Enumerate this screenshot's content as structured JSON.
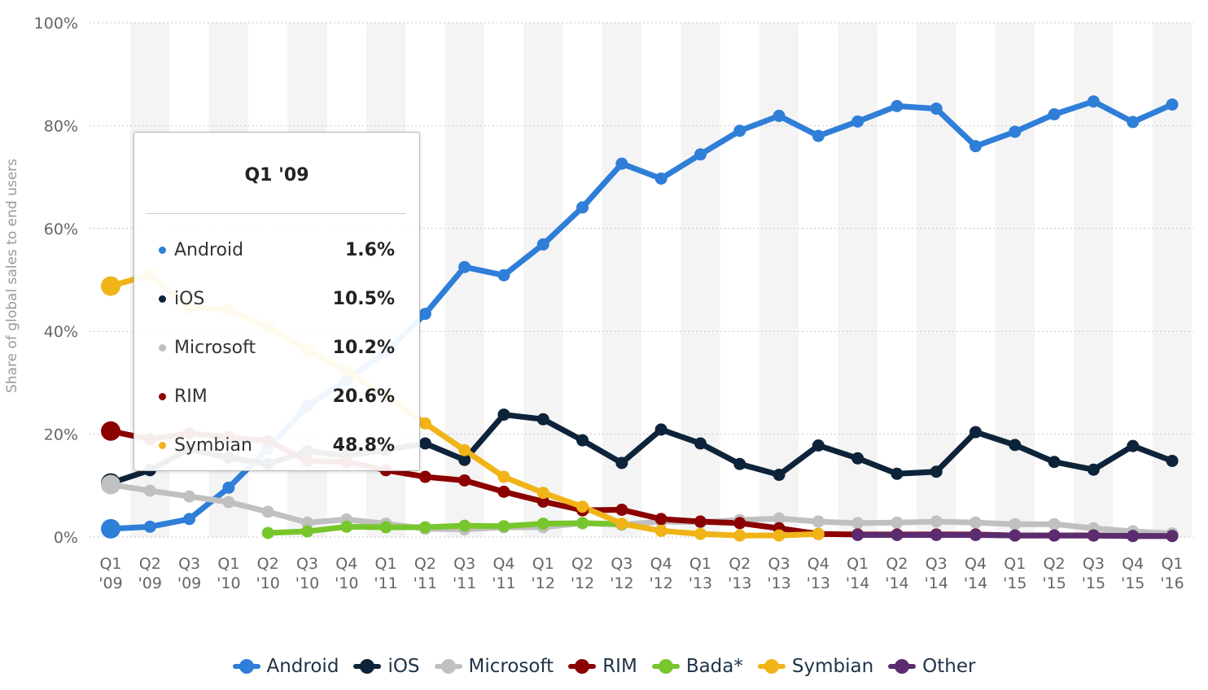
{
  "chart_data": {
    "type": "line",
    "title": "",
    "xlabel": "",
    "ylabel": "Share of global sales to end users",
    "ylim": [
      0,
      100
    ],
    "yticks": [
      "0%",
      "20%",
      "40%",
      "60%",
      "80%",
      "100%"
    ],
    "grid": true,
    "legend_position": "bottom",
    "categories": [
      [
        "Q1",
        "'09"
      ],
      [
        "Q2",
        "'09"
      ],
      [
        "Q3",
        "'09"
      ],
      [
        "Q1",
        "'10"
      ],
      [
        "Q2",
        "'10"
      ],
      [
        "Q3",
        "'10"
      ],
      [
        "Q4",
        "'10"
      ],
      [
        "Q1",
        "'11"
      ],
      [
        "Q2",
        "'11"
      ],
      [
        "Q3",
        "'11"
      ],
      [
        "Q4",
        "'11"
      ],
      [
        "Q1",
        "'12"
      ],
      [
        "Q2",
        "'12"
      ],
      [
        "Q3",
        "'12"
      ],
      [
        "Q4",
        "'12"
      ],
      [
        "Q1",
        "'13"
      ],
      [
        "Q2",
        "'13"
      ],
      [
        "Q3",
        "'13"
      ],
      [
        "Q4",
        "'13"
      ],
      [
        "Q1",
        "'14"
      ],
      [
        "Q2",
        "'14"
      ],
      [
        "Q3",
        "'14"
      ],
      [
        "Q4",
        "'14"
      ],
      [
        "Q1",
        "'15"
      ],
      [
        "Q2",
        "'15"
      ],
      [
        "Q3",
        "'15"
      ],
      [
        "Q4",
        "'15"
      ],
      [
        "Q1",
        "'16"
      ]
    ],
    "series": [
      {
        "name": "Android",
        "color": "#2f7ed8",
        "values": [
          1.6,
          2.0,
          3.5,
          9.6,
          17.2,
          25.5,
          30.5,
          36.0,
          43.4,
          52.5,
          50.9,
          56.9,
          64.1,
          72.6,
          69.7,
          74.4,
          79.0,
          81.9,
          78.0,
          80.8,
          83.8,
          83.3,
          76.0,
          78.8,
          82.2,
          84.7,
          80.7,
          84.1
        ]
      },
      {
        "name": "iOS",
        "color": "#0d233a",
        "values": [
          10.5,
          13.0,
          17.1,
          15.4,
          14.2,
          16.7,
          15.8,
          16.9,
          18.2,
          15.0,
          23.8,
          22.9,
          18.8,
          14.4,
          20.9,
          18.2,
          14.2,
          12.1,
          17.8,
          15.3,
          12.3,
          12.7,
          20.4,
          17.9,
          14.6,
          13.1,
          17.7,
          14.8
        ]
      },
      {
        "name": "Microsoft",
        "color": "#c0c0c0",
        "values": [
          10.2,
          9.0,
          7.9,
          6.8,
          4.9,
          2.8,
          3.4,
          2.6,
          1.6,
          1.5,
          1.9,
          1.9,
          2.7,
          2.4,
          3.0,
          2.9,
          3.3,
          3.6,
          3.0,
          2.7,
          2.8,
          3.0,
          2.8,
          2.5,
          2.5,
          1.7,
          1.1,
          0.7
        ]
      },
      {
        "name": "RIM",
        "color": "#8b0000",
        "values": [
          20.6,
          19.0,
          20.2,
          19.4,
          18.7,
          14.8,
          14.6,
          13.0,
          11.7,
          11.0,
          8.8,
          6.9,
          5.2,
          5.3,
          3.5,
          3.0,
          2.7,
          1.7,
          0.6,
          0.5,
          0.5,
          0.5,
          0.5,
          0.3,
          0.3,
          0.3,
          0.2,
          0.2
        ]
      },
      {
        "name": "Bada*",
        "color": "#77c62d",
        "values": [
          null,
          null,
          null,
          null,
          0.8,
          1.1,
          2.0,
          1.9,
          1.9,
          2.2,
          2.1,
          2.6,
          2.7,
          2.5,
          null,
          null,
          null,
          null,
          null,
          null,
          null,
          null,
          null,
          null,
          null,
          null,
          null,
          null
        ]
      },
      {
        "name": "Symbian",
        "color": "#f0b418",
        "values": [
          48.8,
          51.0,
          44.6,
          44.2,
          40.9,
          36.3,
          32.3,
          27.4,
          22.1,
          16.9,
          11.7,
          8.6,
          5.9,
          2.6,
          1.2,
          0.6,
          0.3,
          0.3,
          0.6,
          null,
          null,
          null,
          null,
          null,
          null,
          null,
          null,
          null
        ]
      },
      {
        "name": "Other",
        "color": "#5b2c6f",
        "values": [
          null,
          null,
          null,
          null,
          null,
          null,
          null,
          null,
          null,
          null,
          null,
          null,
          null,
          null,
          null,
          null,
          null,
          null,
          null,
          0.4,
          0.4,
          0.4,
          0.4,
          0.3,
          0.3,
          0.3,
          0.2,
          0.2
        ]
      }
    ]
  },
  "tooltip": {
    "title": "Q1 '09",
    "rows": [
      {
        "label": "Android",
        "value": "1.6%",
        "color": "#2f7ed8"
      },
      {
        "label": "iOS",
        "value": "10.5%",
        "color": "#0d233a"
      },
      {
        "label": "Microsoft",
        "value": "10.2%",
        "color": "#c0c0c0"
      },
      {
        "label": "RIM",
        "value": "20.6%",
        "color": "#8b0000"
      },
      {
        "label": "Symbian",
        "value": "48.8%",
        "color": "#f0b418"
      }
    ]
  },
  "legend": [
    {
      "label": "Android",
      "color": "#2f7ed8"
    },
    {
      "label": "iOS",
      "color": "#0d233a"
    },
    {
      "label": "Microsoft",
      "color": "#c0c0c0"
    },
    {
      "label": "RIM",
      "color": "#8b0000"
    },
    {
      "label": "Bada*",
      "color": "#77c62d"
    },
    {
      "label": "Symbian",
      "color": "#f0b418"
    },
    {
      "label": "Other",
      "color": "#5b2c6f"
    }
  ]
}
